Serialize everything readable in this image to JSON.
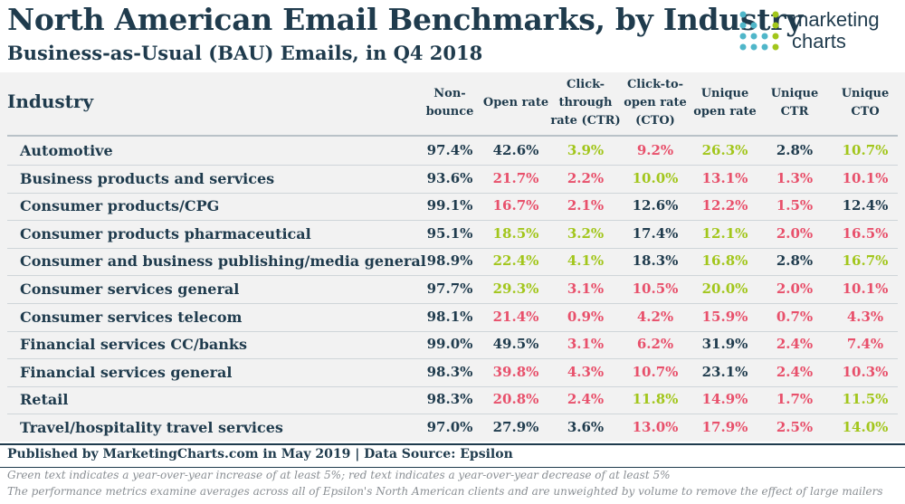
{
  "header": {
    "title": "North American Email Benchmarks, by Industry",
    "subtitle": "Business-as-Usual (BAU) Emails, in Q4 2018"
  },
  "logo": {
    "line1": "marketing",
    "line2": "charts"
  },
  "colors": {
    "up": "#a2c61b",
    "down": "#e8506b",
    "neutral": "#1f3b4d"
  },
  "chart_data": {
    "type": "table",
    "row_header": "Industry",
    "columns": [
      [
        "Non-",
        "bounce"
      ],
      [
        "Open rate"
      ],
      [
        "Click-",
        "through",
        "rate (CTR)"
      ],
      [
        "Click-to-",
        "open rate",
        "(CTO)"
      ],
      [
        "Unique",
        "open rate"
      ],
      [
        "Unique",
        "CTR"
      ],
      [
        "Unique",
        "CTO"
      ]
    ],
    "rows": [
      {
        "label": "Automotive",
        "values": [
          "97.4%",
          "42.6%",
          "3.9%",
          "9.2%",
          "26.3%",
          "2.8%",
          "10.7%"
        ],
        "trend": [
          "n",
          "n",
          "u",
          "d",
          "u",
          "n",
          "u"
        ]
      },
      {
        "label": "Business products and services",
        "values": [
          "93.6%",
          "21.7%",
          "2.2%",
          "10.0%",
          "13.1%",
          "1.3%",
          "10.1%"
        ],
        "trend": [
          "n",
          "d",
          "d",
          "u",
          "d",
          "d",
          "d"
        ]
      },
      {
        "label": "Consumer products/CPG",
        "values": [
          "99.1%",
          "16.7%",
          "2.1%",
          "12.6%",
          "12.2%",
          "1.5%",
          "12.4%"
        ],
        "trend": [
          "n",
          "d",
          "d",
          "n",
          "d",
          "d",
          "n"
        ]
      },
      {
        "label": "Consumer products pharmaceutical",
        "values": [
          "95.1%",
          "18.5%",
          "3.2%",
          "17.4%",
          "12.1%",
          "2.0%",
          "16.5%"
        ],
        "trend": [
          "n",
          "u",
          "u",
          "n",
          "u",
          "d",
          "d"
        ]
      },
      {
        "label": "Consumer and business publishing/media general",
        "values": [
          "98.9%",
          "22.4%",
          "4.1%",
          "18.3%",
          "16.8%",
          "2.8%",
          "16.7%"
        ],
        "trend": [
          "n",
          "u",
          "u",
          "n",
          "u",
          "n",
          "u"
        ]
      },
      {
        "label": "Consumer services general",
        "values": [
          "97.7%",
          "29.3%",
          "3.1%",
          "10.5%",
          "20.0%",
          "2.0%",
          "10.1%"
        ],
        "trend": [
          "n",
          "u",
          "d",
          "d",
          "u",
          "d",
          "d"
        ]
      },
      {
        "label": "Consumer services telecom",
        "values": [
          "98.1%",
          "21.4%",
          "0.9%",
          "4.2%",
          "15.9%",
          "0.7%",
          "4.3%"
        ],
        "trend": [
          "n",
          "d",
          "d",
          "d",
          "d",
          "d",
          "d"
        ]
      },
      {
        "label": "Financial services CC/banks",
        "values": [
          "99.0%",
          "49.5%",
          "3.1%",
          "6.2%",
          "31.9%",
          "2.4%",
          "7.4%"
        ],
        "trend": [
          "n",
          "n",
          "d",
          "d",
          "n",
          "d",
          "d"
        ]
      },
      {
        "label": "Financial services general",
        "values": [
          "98.3%",
          "39.8%",
          "4.3%",
          "10.7%",
          "23.1%",
          "2.4%",
          "10.3%"
        ],
        "trend": [
          "n",
          "d",
          "d",
          "d",
          "n",
          "d",
          "d"
        ]
      },
      {
        "label": "Retail",
        "values": [
          "98.3%",
          "20.8%",
          "2.4%",
          "11.8%",
          "14.9%",
          "1.7%",
          "11.5%"
        ],
        "trend": [
          "n",
          "d",
          "d",
          "u",
          "d",
          "d",
          "u"
        ]
      },
      {
        "label": "Travel/hospitality travel services",
        "values": [
          "97.0%",
          "27.9%",
          "3.6%",
          "13.0%",
          "17.9%",
          "2.5%",
          "14.0%"
        ],
        "trend": [
          "n",
          "n",
          "n",
          "d",
          "d",
          "d",
          "u"
        ]
      }
    ]
  },
  "footer": {
    "source": "Published by MarketingCharts.com in May 2019 | Data Source: Epsilon",
    "note1": "Green text indicates a year-over-year increase of at least 5%; red text indicates a year-over-year decrease of at least 5%",
    "note2": "The performance metrics examine averages across all of Epsilon's North American clients and are unweighted by volume to remove the effect of large mailers"
  }
}
